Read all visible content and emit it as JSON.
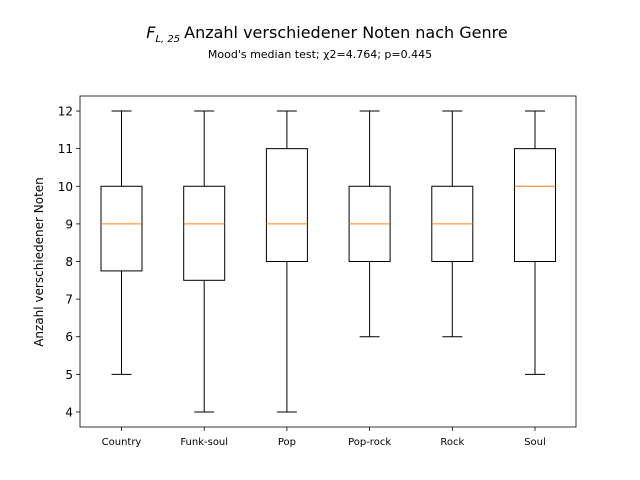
{
  "chart_data": {
    "type": "boxplot",
    "title_prefix": "F",
    "title_subscript": "L, 25",
    "title": "Anzahl verschiedener Noten nach Genre",
    "subtitle": "Mood's median test; χ2=4.764; p=0.445",
    "xlabel": "",
    "ylabel": "Anzahl verschiedener Noten",
    "ylim": [
      3.6,
      12.4
    ],
    "yticks": [
      4,
      5,
      6,
      7,
      8,
      9,
      10,
      11,
      12
    ],
    "grid": false,
    "categories": [
      "Country",
      "Funk-soul",
      "Pop",
      "Pop-rock",
      "Rock",
      "Soul"
    ],
    "boxes": [
      {
        "category": "Country",
        "whisker_low": 5,
        "q1": 7.75,
        "median": 9,
        "q3": 10,
        "whisker_high": 12
      },
      {
        "category": "Funk-soul",
        "whisker_low": 4,
        "q1": 7.5,
        "median": 9,
        "q3": 10,
        "whisker_high": 12
      },
      {
        "category": "Pop",
        "whisker_low": 4,
        "q1": 8,
        "median": 9,
        "q3": 11,
        "whisker_high": 12
      },
      {
        "category": "Pop-rock",
        "whisker_low": 6,
        "q1": 8,
        "median": 9,
        "q3": 10,
        "whisker_high": 12
      },
      {
        "category": "Rock",
        "whisker_low": 6,
        "q1": 8,
        "median": 9,
        "q3": 10,
        "whisker_high": 12
      },
      {
        "category": "Soul",
        "whisker_low": 5,
        "q1": 8,
        "median": 10,
        "q3": 11,
        "whisker_high": 12
      }
    ],
    "colors": {
      "box": "#000000",
      "median": "#ff7f0e",
      "background": "#ffffff"
    }
  }
}
